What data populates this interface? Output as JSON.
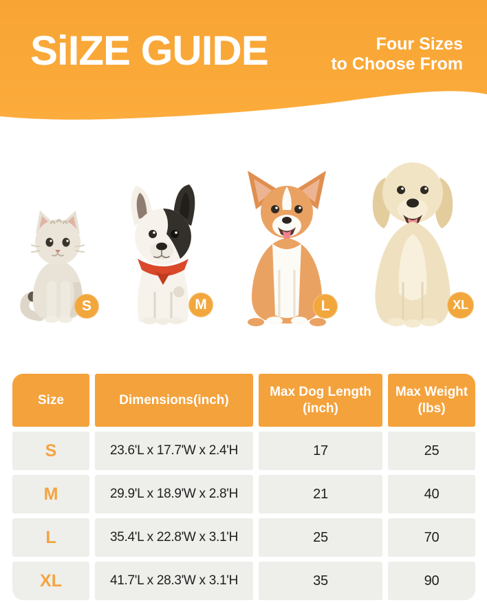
{
  "banner": {
    "title": "SiIZE GUIDE",
    "tagline_line1": "Four Sizes",
    "tagline_line2": "to Choose From",
    "bg_color_top": "#F7A434",
    "bg_color_bottom": "#FCAC3C",
    "text_color": "#FFFFFF"
  },
  "animals": [
    {
      "name": "cat",
      "size_label": "S"
    },
    {
      "name": "french-bulldog",
      "size_label": "M"
    },
    {
      "name": "corgi",
      "size_label": "L"
    },
    {
      "name": "golden-retriever",
      "size_label": "XL"
    }
  ],
  "size_table": {
    "columns": [
      "Size",
      "Dimensions(inch)",
      "Max Dog Length (inch)",
      "Max Weight (lbs)"
    ],
    "rows": [
      {
        "size": "S",
        "dimensions": "23.6'L x 17.7'W x 2.4'H",
        "max_dog_length": "17",
        "max_weight": "25"
      },
      {
        "size": "M",
        "dimensions": "29.9'L x 18.9'W x 2.8'H",
        "max_dog_length": "21",
        "max_weight": "40"
      },
      {
        "size": "L",
        "dimensions": "35.4'L x 22.8'W x 3.1'H",
        "max_dog_length": "25",
        "max_weight": "70"
      },
      {
        "size": "XL",
        "dimensions": "41.7'L x 28.3'W x 3.1'H",
        "max_dog_length": "35",
        "max_weight": "90"
      }
    ],
    "header_bg": "#F4A23C",
    "cell_bg": "#EEEFEA",
    "size_letter_color": "#F4A341",
    "badge_color": "#F2A73D"
  }
}
